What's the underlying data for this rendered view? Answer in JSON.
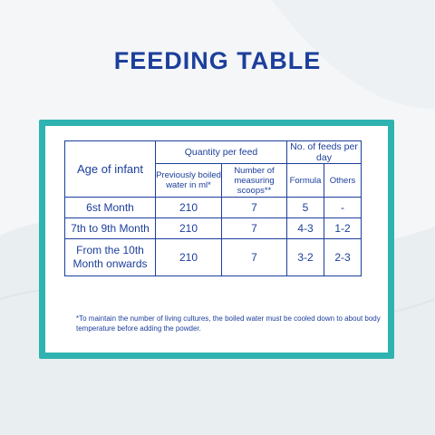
{
  "title": "FEEDING TABLE",
  "table": {
    "age_header": "Age of infant",
    "quantity_header": "Quantity per feed",
    "feeds_header": "No. of feeds per day",
    "water_header": "Previously boiled water in ml*",
    "scoops_header": "Number of measuring scoops**",
    "formula_header": "Formula",
    "others_header": "Others",
    "rows": [
      {
        "age": "6st Month",
        "water": "210",
        "scoops": "7",
        "formula": "5",
        "others": "-"
      },
      {
        "age": "7th to 9th Month",
        "water": "210",
        "scoops": "7",
        "formula": "4-3",
        "others": "1-2"
      },
      {
        "age": "From the 10th Month onwards",
        "water": "210",
        "scoops": "7",
        "formula": "3-2",
        "others": "2-3"
      }
    ]
  },
  "footnote": "*To maintain the number of living cultures, the boiled water must be cooled down to about body temperature before adding the powder.",
  "colors": {
    "navy": "#1c3f9b",
    "teal": "#2fb3b1"
  }
}
